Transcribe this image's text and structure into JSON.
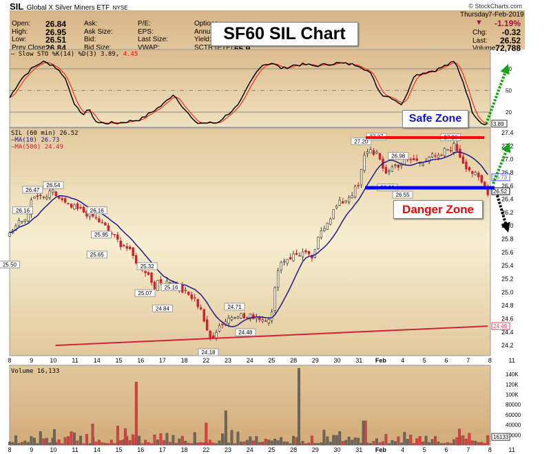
{
  "header": {
    "symbol": "SIL",
    "name": "Global X Silver Miners ETF",
    "exchange": "NYSE",
    "watermark": "© StockCharts.com",
    "day": "Thursday",
    "date": "7-Feb-2019",
    "pct_change": "-1.19%",
    "chg_label": "Chg:",
    "chg": "-0.32",
    "last_label": "Last:",
    "last": "26.52",
    "volume_label": "Volume:",
    "volume": "72,788"
  },
  "quote": {
    "col1": [
      {
        "label": "Open:",
        "value": "26.84"
      },
      {
        "label": "High:",
        "value": "26.95"
      },
      {
        "label": "Low:",
        "value": "26.51"
      },
      {
        "label": "Prev Close:",
        "value": "26.84"
      }
    ],
    "col2": [
      "Ask:",
      "Ask Size:",
      "Bid:",
      "Bid Size:"
    ],
    "col3": [
      "P/E:",
      "EPS:",
      "Last Size:",
      "VWAP:"
    ],
    "col4": [
      "Options",
      "Annual",
      "Yield:",
      "SCTR (ETF):"
    ],
    "sctr": "65.9"
  },
  "annotations": {
    "title": "SF60 SIL Chart",
    "safe": "Safe Zone",
    "danger": "Danger Zone"
  },
  "colors": {
    "up": "#f3edd8",
    "down": "#d0202c",
    "ma10": "#1a1a8c",
    "ma500": "#d0203c",
    "k": "#000000",
    "d": "#ff2a1a",
    "vol_up": "#6e6658",
    "vol_down": "#d94040",
    "green": "#1aa01a",
    "resistance": "#ff0000",
    "support": "#0000ff"
  },
  "chart_data": [
    {
      "type": "line",
      "title": "Slow STO %K(14) %D(3)",
      "legend_k": "— Slow STO %K(14) %D(3) 3.89,",
      "legend_d": "4.45",
      "k_last": "3.89",
      "yticks": [
        "80",
        "50",
        "20"
      ],
      "levels": [
        80,
        50,
        20
      ],
      "ylim": [
        0,
        100
      ],
      "k": [
        [
          0,
          40
        ],
        [
          0.5,
          65
        ],
        [
          1,
          80
        ],
        [
          1.5,
          90
        ],
        [
          2,
          85
        ],
        [
          2.5,
          70
        ],
        [
          3,
          30
        ],
        [
          3.3,
          15
        ],
        [
          3.6,
          25
        ],
        [
          4,
          5
        ],
        [
          5,
          5
        ],
        [
          6,
          10
        ],
        [
          7,
          30
        ],
        [
          7.5,
          45
        ],
        [
          8,
          25
        ],
        [
          8.5,
          5
        ],
        [
          9.5,
          5
        ],
        [
          10.5,
          30
        ],
        [
          11,
          60
        ],
        [
          11.5,
          85
        ],
        [
          12,
          88
        ],
        [
          12.5,
          80
        ],
        [
          13,
          85
        ],
        [
          13.5,
          86
        ],
        [
          14,
          84
        ],
        [
          15,
          88
        ],
        [
          16,
          85
        ],
        [
          16.5,
          75
        ],
        [
          17,
          45
        ],
        [
          17.5,
          40
        ],
        [
          18,
          30
        ],
        [
          18.5,
          70
        ],
        [
          19,
          75
        ],
        [
          19.5,
          78
        ],
        [
          20,
          85
        ],
        [
          20.4,
          90
        ],
        [
          20.8,
          60
        ],
        [
          21.2,
          20
        ],
        [
          21.6,
          5
        ],
        [
          21.9,
          3.89
        ]
      ]
    },
    {
      "type": "candlestick",
      "title": "SIL (60 min) 26.52",
      "legend_ma10": "—MA(10) 26.73",
      "legend_ma500": "—MA(500) 24.49",
      "ylim": [
        24.0,
        27.5
      ],
      "yticks": [
        "27.4",
        "27.2",
        "27.0",
        "26.8",
        "26.6",
        "26.4",
        "26.2",
        "26.0",
        "25.8",
        "25.6",
        "25.4",
        "25.2",
        "25.0",
        "24.8",
        "24.6",
        "24.4",
        "24.2"
      ],
      "tags": {
        "ma10": "26.73",
        "last": "26.52",
        "ma500": "24.49"
      },
      "xticks": [
        "8",
        "9",
        "10",
        "11",
        "14",
        "15",
        "16",
        "17",
        "18",
        "22",
        "23",
        "24",
        "25",
        "28",
        "29",
        "30",
        "31",
        "Feb",
        "4",
        "5",
        "6",
        "7",
        "8",
        "11"
      ],
      "close_path": [
        [
          0,
          25.9
        ],
        [
          0.3,
          26.0
        ],
        [
          0.7,
          26.1
        ],
        [
          1,
          26.35
        ],
        [
          1.2,
          26.45
        ],
        [
          1.5,
          26.4
        ],
        [
          2,
          26.5
        ],
        [
          2.3,
          26.4
        ],
        [
          2.6,
          26.3
        ],
        [
          3,
          26.25
        ],
        [
          3.5,
          26.2
        ],
        [
          4,
          26.1
        ],
        [
          4.3,
          26.0
        ],
        [
          4.6,
          25.9
        ],
        [
          5,
          25.75
        ],
        [
          5.3,
          25.7
        ],
        [
          5.6,
          25.55
        ],
        [
          6,
          25.4
        ],
        [
          6.3,
          25.3
        ],
        [
          6.6,
          25.1
        ],
        [
          7,
          25.15
        ],
        [
          7.3,
          25.2
        ],
        [
          7.6,
          25.1
        ],
        [
          8,
          25.0
        ],
        [
          8.4,
          24.9
        ],
        [
          8.8,
          24.75
        ],
        [
          9,
          24.4
        ],
        [
          9.2,
          24.3
        ],
        [
          9.6,
          24.5
        ],
        [
          10,
          24.6
        ],
        [
          10.4,
          24.7
        ],
        [
          10.8,
          24.6
        ],
        [
          11.2,
          24.65
        ],
        [
          11.6,
          24.6
        ],
        [
          12,
          24.65
        ],
        [
          12.3,
          25.4
        ],
        [
          12.6,
          25.5
        ],
        [
          13,
          25.55
        ],
        [
          13.4,
          25.6
        ],
        [
          13.8,
          25.5
        ],
        [
          14,
          25.6
        ],
        [
          14.2,
          25.9
        ],
        [
          14.6,
          26.1
        ],
        [
          15,
          26.3
        ],
        [
          15.4,
          26.4
        ],
        [
          16,
          26.6
        ],
        [
          16.2,
          27.0
        ],
        [
          16.4,
          27.15
        ],
        [
          16.8,
          27.1
        ],
        [
          17,
          26.9
        ],
        [
          17.2,
          26.8
        ],
        [
          17.6,
          26.9
        ],
        [
          18,
          26.95
        ],
        [
          18.4,
          27.0
        ],
        [
          18.8,
          26.95
        ],
        [
          19.2,
          27.05
        ],
        [
          19.6,
          27.0
        ],
        [
          20,
          27.15
        ],
        [
          20.4,
          27.2
        ],
        [
          20.8,
          26.95
        ],
        [
          21.2,
          26.8
        ],
        [
          21.6,
          26.65
        ],
        [
          21.9,
          26.52
        ]
      ],
      "ma500": [
        [
          2.1,
          24.2
        ],
        [
          21.9,
          24.49
        ]
      ],
      "labels": [
        [
          0,
          25.5,
          "25.50"
        ],
        [
          1.05,
          26.47,
          "26.47"
        ],
        [
          2,
          26.54,
          "26.54"
        ],
        [
          0.6,
          26.16,
          "26.16"
        ],
        [
          4,
          26.16,
          "26.16"
        ],
        [
          4.2,
          25.95,
          "25.95"
        ],
        [
          4,
          25.65,
          "25.65"
        ],
        [
          6.3,
          25.32,
          "25.32"
        ],
        [
          7.4,
          25.16,
          "25.16"
        ],
        [
          6.2,
          25.07,
          "25.07"
        ],
        [
          7,
          24.84,
          "24.84"
        ],
        [
          10.3,
          24.71,
          "24.71"
        ],
        [
          10.8,
          24.48,
          "24.48"
        ],
        [
          9.1,
          24.18,
          "24.18"
        ],
        [
          16.1,
          27.2,
          "27.20"
        ],
        [
          16.8,
          27.27,
          "27.27"
        ],
        [
          17.8,
          26.98,
          "26.98"
        ],
        [
          17.3,
          26.66,
          "26.66"
        ],
        [
          18,
          26.55,
          "26.55"
        ],
        [
          20.2,
          27.26,
          "27.26"
        ]
      ]
    },
    {
      "type": "bar",
      "title": "Volume 16,133",
      "last": "16133",
      "ylim": [
        0,
        150000
      ],
      "yticks": [
        "140K",
        "120K",
        "100K",
        "80000",
        "60000",
        "40000",
        "20000"
      ],
      "spikes": [
        [
          5.8,
          125000,
          "down"
        ],
        [
          9.9,
          68000,
          "up"
        ],
        [
          13.25,
          152000,
          "up"
        ],
        [
          9.0,
          44000,
          "down"
        ],
        [
          4.95,
          38000,
          "down"
        ],
        [
          3.8,
          42000,
          "down"
        ],
        [
          16.2,
          48000,
          "up"
        ],
        [
          16.3,
          48000,
          "down"
        ],
        [
          5.3,
          33000,
          "down"
        ],
        [
          2.05,
          31000,
          "up"
        ],
        [
          20.6,
          32000,
          "down"
        ],
        [
          14.4,
          30000,
          "up"
        ]
      ]
    }
  ]
}
